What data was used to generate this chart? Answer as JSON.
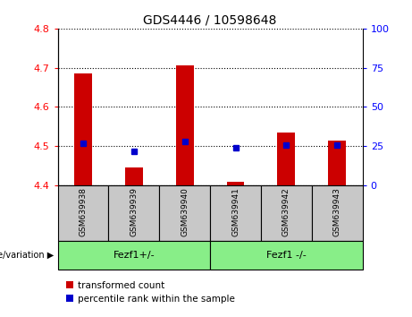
{
  "title": "GDS4446 / 10598648",
  "samples": [
    "GSM639938",
    "GSM639939",
    "GSM639940",
    "GSM639941",
    "GSM639942",
    "GSM639943"
  ],
  "transformed_count": [
    4.685,
    4.445,
    4.705,
    4.41,
    4.535,
    4.515
  ],
  "bar_bottom": 4.4,
  "percentile_rank_pct": [
    27,
    22,
    28,
    24,
    26,
    26
  ],
  "ylim_left": [
    4.4,
    4.8
  ],
  "ylim_right": [
    0,
    100
  ],
  "yticks_left": [
    4.4,
    4.5,
    4.6,
    4.7,
    4.8
  ],
  "yticks_right": [
    0,
    25,
    50,
    75,
    100
  ],
  "bar_color": "#cc0000",
  "dot_color": "#0000cc",
  "group1_label": "Fezf1+/-",
  "group2_label": "Fezf1 -/-",
  "group1_indices": [
    0,
    1,
    2
  ],
  "group2_indices": [
    3,
    4,
    5
  ],
  "group_bg_color": "#88ee88",
  "sample_bg_color": "#c8c8c8",
  "legend_red_label": "transformed count",
  "legend_blue_label": "percentile rank within the sample",
  "genotype_label": "genotype/variation",
  "title_fontsize": 10,
  "tick_fontsize": 8,
  "sample_fontsize": 6.5,
  "group_fontsize": 8,
  "legend_fontsize": 7.5
}
